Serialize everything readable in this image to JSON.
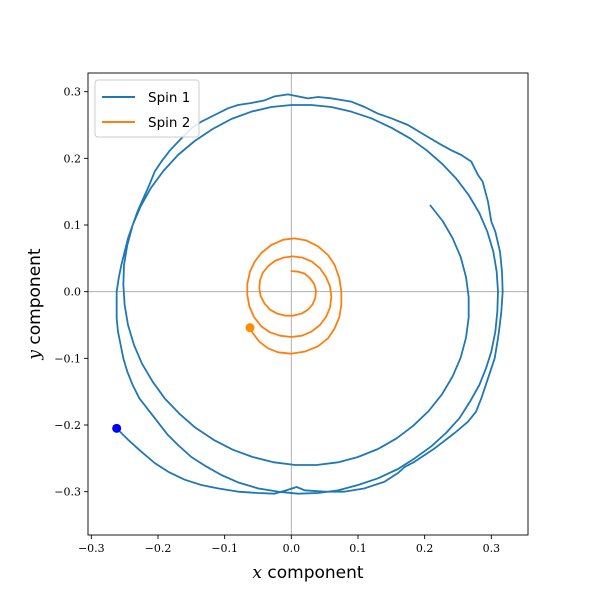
{
  "chart_data": {
    "type": "line",
    "title": "",
    "xlabel": {
      "var": "x",
      "text": " component"
    },
    "ylabel": {
      "var": "y",
      "text": " component"
    },
    "xlim": [
      -0.305,
      0.355
    ],
    "ylim": [
      -0.365,
      0.328
    ],
    "xticks": [
      -0.3,
      -0.2,
      -0.1,
      0.0,
      0.1,
      0.2,
      0.3
    ],
    "yticks": [
      -0.3,
      -0.2,
      -0.1,
      0.0,
      0.1,
      0.2,
      0.3
    ],
    "xtick_labels": [
      "−0.3",
      "−0.2",
      "−0.1",
      "0.0",
      "0.1",
      "0.2",
      "0.3"
    ],
    "ytick_labels": [
      "−0.3",
      "−0.2",
      "−0.1",
      "0.0",
      "0.1",
      "0.2",
      "0.3"
    ],
    "reference_lines": {
      "x0": true,
      "y0": true,
      "color": "#b0b0b0"
    },
    "legend": {
      "position": "top-left"
    },
    "series": [
      {
        "name": "Spin 1",
        "color": "#1f77b4",
        "marker_color": "#0000ff",
        "points": [
          [
            -0.262,
            -0.205
          ],
          [
            -0.245,
            -0.222
          ],
          [
            -0.225,
            -0.24
          ],
          [
            -0.205,
            -0.257
          ],
          [
            -0.185,
            -0.27
          ],
          [
            -0.16,
            -0.282
          ],
          [
            -0.135,
            -0.29
          ],
          [
            -0.11,
            -0.295
          ],
          [
            -0.08,
            -0.3
          ],
          [
            -0.05,
            -0.302
          ],
          [
            -0.025,
            -0.303
          ],
          [
            -0.008,
            -0.298
          ],
          [
            0.008,
            -0.293
          ],
          [
            0.02,
            -0.298
          ],
          [
            0.05,
            -0.3
          ],
          [
            0.08,
            -0.3
          ],
          [
            0.11,
            -0.295
          ],
          [
            0.14,
            -0.285
          ],
          [
            0.16,
            -0.272
          ],
          [
            0.17,
            -0.263
          ],
          [
            0.185,
            -0.255
          ],
          [
            0.215,
            -0.235
          ],
          [
            0.245,
            -0.212
          ],
          [
            0.265,
            -0.195
          ],
          [
            0.277,
            -0.18
          ],
          [
            0.285,
            -0.16
          ],
          [
            0.295,
            -0.13
          ],
          [
            0.305,
            -0.1
          ],
          [
            0.31,
            -0.07
          ],
          [
            0.312,
            -0.055
          ],
          [
            0.315,
            -0.03
          ],
          [
            0.317,
            0.0
          ],
          [
            0.316,
            0.03
          ],
          [
            0.313,
            0.06
          ],
          [
            0.306,
            0.09
          ],
          [
            0.3,
            0.105
          ],
          [
            0.295,
            0.135
          ],
          [
            0.287,
            0.165
          ],
          [
            0.28,
            0.175
          ],
          [
            0.27,
            0.195
          ],
          [
            0.255,
            0.205
          ],
          [
            0.24,
            0.212
          ],
          [
            0.222,
            0.222
          ],
          [
            0.205,
            0.232
          ],
          [
            0.195,
            0.238
          ],
          [
            0.175,
            0.25
          ],
          [
            0.15,
            0.26
          ],
          [
            0.13,
            0.267
          ],
          [
            0.11,
            0.277
          ],
          [
            0.09,
            0.285
          ],
          [
            0.06,
            0.29
          ],
          [
            0.04,
            0.292
          ],
          [
            0.025,
            0.29
          ],
          [
            0.01,
            0.293
          ],
          [
            -0.005,
            0.296
          ],
          [
            -0.025,
            0.293
          ],
          [
            -0.04,
            0.287
          ],
          [
            -0.06,
            0.283
          ],
          [
            -0.08,
            0.28
          ],
          [
            -0.095,
            0.275
          ],
          [
            -0.115,
            0.265
          ],
          [
            -0.135,
            0.255
          ],
          [
            -0.15,
            0.245
          ],
          [
            -0.165,
            0.23
          ],
          [
            -0.182,
            0.212
          ],
          [
            -0.195,
            0.195
          ],
          [
            -0.205,
            0.18
          ],
          [
            -0.213,
            0.16
          ],
          [
            -0.222,
            0.14
          ],
          [
            -0.23,
            0.122
          ],
          [
            -0.238,
            0.1
          ],
          [
            -0.245,
            0.08
          ],
          [
            -0.25,
            0.06
          ],
          [
            -0.255,
            0.04
          ],
          [
            -0.259,
            0.02
          ],
          [
            -0.262,
            0.0
          ],
          [
            -0.262,
            -0.02
          ],
          [
            -0.262,
            -0.04
          ],
          [
            -0.26,
            -0.06
          ],
          [
            -0.256,
            -0.08
          ],
          [
            -0.252,
            -0.1
          ],
          [
            -0.246,
            -0.12
          ],
          [
            -0.238,
            -0.14
          ],
          [
            -0.228,
            -0.16
          ],
          [
            -0.214,
            -0.178
          ],
          [
            -0.2,
            -0.196
          ],
          [
            -0.186,
            -0.214
          ],
          [
            -0.17,
            -0.23
          ],
          [
            -0.15,
            -0.248
          ],
          [
            -0.128,
            -0.262
          ],
          [
            -0.105,
            -0.275
          ],
          [
            -0.08,
            -0.286
          ],
          [
            -0.05,
            -0.295
          ],
          [
            -0.02,
            -0.3
          ],
          [
            0.01,
            -0.303
          ],
          [
            0.04,
            -0.302
          ],
          [
            0.07,
            -0.298
          ],
          [
            0.1,
            -0.29
          ],
          [
            0.13,
            -0.28
          ],
          [
            0.16,
            -0.266
          ],
          [
            0.185,
            -0.25
          ],
          [
            0.21,
            -0.232
          ],
          [
            0.232,
            -0.212
          ],
          [
            0.252,
            -0.19
          ],
          [
            0.268,
            -0.165
          ],
          [
            0.282,
            -0.14
          ],
          [
            0.292,
            -0.115
          ],
          [
            0.3,
            -0.09
          ],
          [
            0.306,
            -0.06
          ],
          [
            0.309,
            -0.03
          ],
          [
            0.31,
            0.0
          ],
          [
            0.308,
            0.03
          ],
          [
            0.303,
            0.06
          ],
          [
            0.294,
            0.09
          ],
          [
            0.282,
            0.118
          ],
          [
            0.266,
            0.145
          ],
          [
            0.247,
            0.17
          ],
          [
            0.226,
            0.192
          ],
          [
            0.203,
            0.212
          ],
          [
            0.178,
            0.23
          ],
          [
            0.15,
            0.246
          ],
          [
            0.12,
            0.26
          ],
          [
            0.09,
            0.27
          ],
          [
            0.06,
            0.277
          ],
          [
            0.03,
            0.28
          ],
          [
            0.0,
            0.28
          ],
          [
            -0.03,
            0.277
          ],
          [
            -0.06,
            0.27
          ],
          [
            -0.09,
            0.259
          ],
          [
            -0.118,
            0.244
          ],
          [
            -0.145,
            0.226
          ],
          [
            -0.17,
            0.205
          ],
          [
            -0.192,
            0.181
          ],
          [
            -0.211,
            0.155
          ],
          [
            -0.226,
            0.128
          ],
          [
            -0.238,
            0.1
          ],
          [
            -0.246,
            0.07
          ],
          [
            -0.251,
            0.04
          ],
          [
            -0.252,
            0.01
          ],
          [
            -0.25,
            -0.02
          ],
          [
            -0.245,
            -0.05
          ],
          [
            -0.236,
            -0.08
          ],
          [
            -0.224,
            -0.108
          ],
          [
            -0.208,
            -0.135
          ],
          [
            -0.19,
            -0.16
          ],
          [
            -0.168,
            -0.183
          ],
          [
            -0.144,
            -0.204
          ],
          [
            -0.117,
            -0.222
          ],
          [
            -0.088,
            -0.237
          ],
          [
            -0.058,
            -0.248
          ],
          [
            -0.026,
            -0.256
          ],
          [
            0.006,
            -0.26
          ],
          [
            0.038,
            -0.26
          ],
          [
            0.07,
            -0.256
          ],
          [
            0.1,
            -0.248
          ],
          [
            0.13,
            -0.236
          ],
          [
            0.158,
            -0.22
          ],
          [
            0.183,
            -0.201
          ],
          [
            0.206,
            -0.179
          ],
          [
            0.226,
            -0.154
          ],
          [
            0.242,
            -0.127
          ],
          [
            0.254,
            -0.099
          ],
          [
            0.262,
            -0.069
          ],
          [
            0.266,
            -0.039
          ],
          [
            0.266,
            -0.008
          ],
          [
            0.262,
            0.022
          ],
          [
            0.254,
            0.052
          ],
          [
            0.242,
            0.08
          ],
          [
            0.227,
            0.106
          ],
          [
            0.208,
            0.13
          ]
        ],
        "marker": [
          -0.262,
          -0.205
        ]
      },
      {
        "name": "Spin 2",
        "color": "#ff7f0e",
        "marker_color": "#ff8c00",
        "points": [
          [
            -0.062,
            -0.054
          ],
          [
            -0.058,
            -0.062
          ],
          [
            -0.048,
            -0.075
          ],
          [
            -0.035,
            -0.085
          ],
          [
            -0.02,
            -0.091
          ],
          [
            0.0,
            -0.093
          ],
          [
            0.02,
            -0.09
          ],
          [
            0.04,
            -0.082
          ],
          [
            0.055,
            -0.07
          ],
          [
            0.065,
            -0.055
          ],
          [
            0.072,
            -0.038
          ],
          [
            0.075,
            -0.02
          ],
          [
            0.075,
            0.0
          ],
          [
            0.072,
            0.02
          ],
          [
            0.065,
            0.04
          ],
          [
            0.055,
            0.055
          ],
          [
            0.04,
            0.068
          ],
          [
            0.022,
            0.077
          ],
          [
            0.005,
            0.08
          ],
          [
            -0.012,
            0.078
          ],
          [
            -0.03,
            0.07
          ],
          [
            -0.045,
            0.058
          ],
          [
            -0.055,
            0.045
          ],
          [
            -0.062,
            0.03
          ],
          [
            -0.066,
            0.012
          ],
          [
            -0.066,
            -0.005
          ],
          [
            -0.063,
            -0.022
          ],
          [
            -0.056,
            -0.038
          ],
          [
            -0.045,
            -0.052
          ],
          [
            -0.032,
            -0.061
          ],
          [
            -0.017,
            -0.066
          ],
          [
            0.0,
            -0.068
          ],
          [
            0.016,
            -0.066
          ],
          [
            0.03,
            -0.06
          ],
          [
            0.043,
            -0.05
          ],
          [
            0.052,
            -0.038
          ],
          [
            0.058,
            -0.024
          ],
          [
            0.06,
            -0.008
          ],
          [
            0.058,
            0.008
          ],
          [
            0.052,
            0.022
          ],
          [
            0.043,
            0.035
          ],
          [
            0.031,
            0.045
          ],
          [
            0.017,
            0.051
          ],
          [
            0.002,
            0.053
          ],
          [
            -0.012,
            0.051
          ],
          [
            -0.025,
            0.046
          ],
          [
            -0.035,
            0.038
          ],
          [
            -0.043,
            0.028
          ],
          [
            -0.047,
            0.017
          ],
          [
            -0.048,
            0.005
          ],
          [
            -0.046,
            -0.007
          ],
          [
            -0.04,
            -0.018
          ],
          [
            -0.032,
            -0.027
          ],
          [
            -0.021,
            -0.033
          ],
          [
            -0.009,
            -0.036
          ],
          [
            0.003,
            -0.036
          ],
          [
            0.015,
            -0.033
          ],
          [
            0.025,
            -0.027
          ],
          [
            0.032,
            -0.019
          ],
          [
            0.036,
            -0.009
          ],
          [
            0.037,
            0.002
          ],
          [
            0.034,
            0.012
          ],
          [
            0.028,
            0.02
          ],
          [
            0.02,
            0.027
          ],
          [
            0.01,
            0.03
          ],
          [
            -0.001,
            0.031
          ]
        ],
        "marker": [
          -0.062,
          -0.054
        ]
      }
    ]
  }
}
